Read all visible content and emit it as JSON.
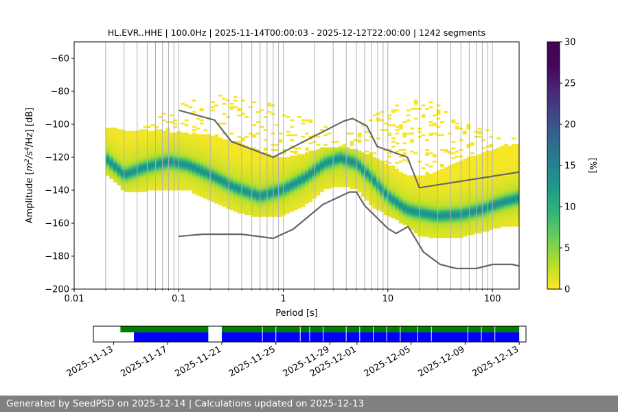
{
  "chart_data": {
    "type": "heatmap",
    "title": "HL.EVR..HHE | 100.0Hz | 2025-11-14T00:00:03 - 2025-12-12T22:00:00 | 1242 segments",
    "xlabel": "Period [s]",
    "ylabel": "Amplitude [$m^2/s^4/Hz$] [dB]",
    "ylabel_parts": {
      "prefix": "Amplitude [",
      "units_main": "m",
      "sup1": "2",
      "mid": "/s",
      "sup2": "4",
      "tail": "/Hz] [dB]"
    },
    "x_scale": "log",
    "xlim": [
      0.01,
      180
    ],
    "ylim": [
      -200,
      -50
    ],
    "x_tick_labels": [
      "0.01",
      "0.1",
      "1",
      "10",
      "100"
    ],
    "x_tick_values": [
      0.01,
      0.1,
      1,
      10,
      100
    ],
    "y_tick_labels": [
      "−60",
      "−80",
      "−100",
      "−120",
      "−140",
      "−160",
      "−180",
      "−200"
    ],
    "y_tick_values": [
      -60,
      -80,
      -100,
      -120,
      -140,
      -160,
      -180,
      -200
    ],
    "grid": "vertical",
    "colorbar": {
      "label": "[%]",
      "range": [
        0,
        30
      ],
      "tick_labels": [
        "0",
        "5",
        "10",
        "15",
        "20",
        "25",
        "30"
      ],
      "tick_values": [
        0,
        5,
        10,
        15,
        20,
        25,
        30
      ],
      "colormap": "viridis_r"
    },
    "density_ridge": {
      "period": [
        0.02,
        0.03,
        0.05,
        0.08,
        0.12,
        0.2,
        0.35,
        0.6,
        1.0,
        1.6,
        2.5,
        3.5,
        5.0,
        7.0,
        10,
        15,
        20,
        30,
        50,
        80,
        120,
        180
      ],
      "median_db": [
        -121,
        -131,
        -126,
        -123,
        -125,
        -131,
        -139,
        -144,
        -140,
        -133,
        -124,
        -121,
        -124,
        -133,
        -144,
        -152,
        -154,
        -156,
        -155,
        -152,
        -148,
        -145
      ],
      "band_upper_db": [
        -101,
        -104,
        -104,
        -105,
        -106,
        -107,
        -111,
        -117,
        -121,
        -118,
        -114,
        -114,
        -116,
        -119,
        -125,
        -131,
        -132,
        -129,
        -122,
        -118,
        -114,
        -112
      ],
      "band_lower_db": [
        -130,
        -141,
        -141,
        -140,
        -140,
        -147,
        -154,
        -157,
        -156,
        -150,
        -140,
        -138,
        -140,
        -150,
        -156,
        -162,
        -168,
        -170,
        -169,
        -166,
        -163,
        -162
      ],
      "outlier_upper_db": [
        -102,
        -103,
        -100,
        -92,
        -84,
        -80,
        -83,
        -86,
        -91,
        -96,
        -98,
        -99,
        -103,
        -96,
        -90,
        -87,
        -85,
        -88,
        -95,
        -102,
        -106,
        -108
      ]
    },
    "noise_models": {
      "high": {
        "period": [
          0.1,
          0.22,
          0.32,
          0.8,
          3.8,
          4.6,
          6.3,
          7.9,
          15.4,
          20,
          180
        ],
        "db": [
          -91.5,
          -97.4,
          -110.5,
          -120,
          -98,
          -96.5,
          -101,
          -113.5,
          -120,
          -138.5,
          -129
        ]
      },
      "low": {
        "period": [
          0.1,
          0.17,
          0.4,
          0.8,
          1.24,
          2.4,
          4.3,
          5.0,
          6.0,
          10,
          12,
          15.6,
          21.9,
          31.6,
          45,
          70,
          101,
          154,
          180
        ],
        "db": [
          -168,
          -166.7,
          -166.7,
          -169.2,
          -163.7,
          -148.6,
          -141.1,
          -141.1,
          -149.4,
          -163.2,
          -166.2,
          -162.1,
          -177.5,
          -185,
          -187.5,
          -187.5,
          -185,
          -185,
          -186
        ]
      }
    },
    "data_availability": {
      "x_tick_labels": [
        "2025-11-13",
        "2025-11-17",
        "2025-11-21",
        "2025-11-25",
        "2025-11-29",
        "2025-12-01",
        "2025-12-05",
        "2025-12-09",
        "2025-12-13"
      ],
      "x_tick_dates": [
        "2025-11-13",
        "2025-11-17",
        "2025-11-21",
        "2025-11-25",
        "2025-11-29",
        "2025-12-01",
        "2025-12-05",
        "2025-12-09",
        "2025-12-13"
      ],
      "xlim": [
        "2025-11-11.5",
        "2025-12-13.5"
      ],
      "green_segments": [
        [
          "2025-11-13.5",
          "2025-11-20.0"
        ],
        [
          "2025-11-21.0",
          "2025-12-13.0"
        ]
      ],
      "blue_segments": [
        [
          "2025-11-14.5",
          "2025-11-20.0"
        ],
        [
          "2025-11-21.0",
          "2025-12-13.0"
        ]
      ],
      "gap_dates": [
        "2025-11-24",
        "2025-11-25",
        "2025-11-26.8",
        "2025-11-27.5",
        "2025-11-28.5",
        "2025-11-30.2",
        "2025-12-01.2",
        "2025-12-02.2",
        "2025-12-03.2",
        "2025-12-04.2",
        "2025-12-05.5",
        "2025-12-06.5",
        "2025-12-09.2",
        "2025-12-10.2",
        "2025-12-11.2"
      ]
    }
  },
  "colors": {
    "noise_model": "#666666",
    "availability_green": "#008000",
    "availability_blue": "#0000ff",
    "grid": "#b0b0b0",
    "footer_bg": "#808080"
  },
  "footer": {
    "text": "Generated by SeedPSD on 2025-12-14 | Calculations updated on 2025-12-13"
  }
}
